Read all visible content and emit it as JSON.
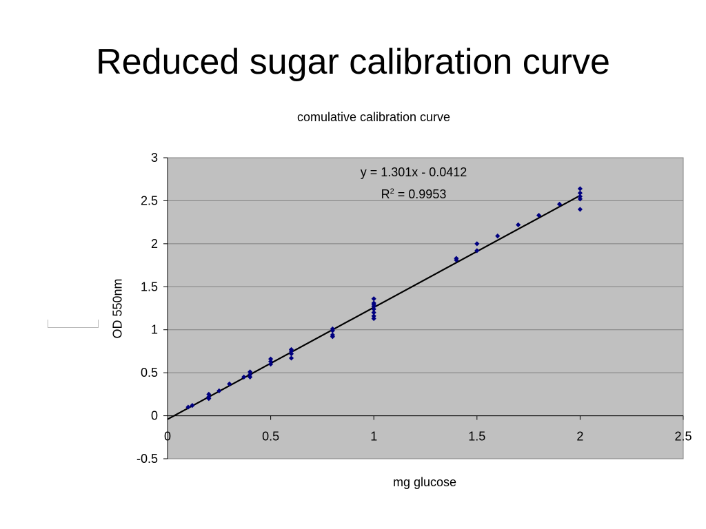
{
  "slide": {
    "title": "Reduced sugar calibration curve"
  },
  "chart_data": {
    "type": "scatter",
    "title": "comulative calibration curve",
    "xlabel": "mg glucose",
    "ylabel": "OD 550nm",
    "xlim": [
      0,
      2.5
    ],
    "ylim": [
      -0.5,
      3
    ],
    "x_ticks": [
      "0",
      "0.5",
      "1",
      "1.5",
      "2",
      "2.5"
    ],
    "y_ticks": [
      "-0.5",
      "0",
      "0.5",
      "1",
      "1.5",
      "2",
      "2.5",
      "3"
    ],
    "grid": "horizontal",
    "plot_background": "#c0c0c0",
    "marker_color": "#000080",
    "line_color": "#000000",
    "series": [
      {
        "points": [
          [
            0.1,
            0.1
          ],
          [
            0.12,
            0.12
          ],
          [
            0.2,
            0.2
          ],
          [
            0.2,
            0.22
          ],
          [
            0.2,
            0.25
          ],
          [
            0.25,
            0.29
          ],
          [
            0.3,
            0.37
          ],
          [
            0.37,
            0.45
          ],
          [
            0.4,
            0.45
          ],
          [
            0.4,
            0.48
          ],
          [
            0.4,
            0.51
          ],
          [
            0.5,
            0.6
          ],
          [
            0.5,
            0.63
          ],
          [
            0.5,
            0.66
          ],
          [
            0.6,
            0.67
          ],
          [
            0.6,
            0.72
          ],
          [
            0.6,
            0.75
          ],
          [
            0.6,
            0.77
          ],
          [
            0.8,
            0.92
          ],
          [
            0.8,
            0.94
          ],
          [
            0.8,
            0.99
          ],
          [
            0.8,
            1.01
          ],
          [
            1.0,
            1.13
          ],
          [
            1.0,
            1.16
          ],
          [
            1.0,
            1.2
          ],
          [
            1.0,
            1.24
          ],
          [
            1.0,
            1.27
          ],
          [
            1.0,
            1.29
          ],
          [
            1.0,
            1.31
          ],
          [
            1.0,
            1.36
          ],
          [
            1.4,
            1.81
          ],
          [
            1.4,
            1.83
          ],
          [
            1.5,
            1.92
          ],
          [
            1.5,
            2.0
          ],
          [
            1.6,
            2.09
          ],
          [
            1.7,
            2.22
          ],
          [
            1.8,
            2.33
          ],
          [
            1.9,
            2.46
          ],
          [
            2.0,
            2.4
          ],
          [
            2.0,
            2.52
          ],
          [
            2.0,
            2.55
          ],
          [
            2.0,
            2.59
          ],
          [
            2.0,
            2.64
          ]
        ]
      }
    ],
    "trendline": {
      "slope": 1.301,
      "intercept": -0.0412,
      "x_range": [
        0,
        2.0
      ]
    },
    "equation": "y = 1.301x - 0.0412",
    "r2_prefix": "R",
    "r2_sup": "2",
    "r2_value": " = 0.9953"
  }
}
